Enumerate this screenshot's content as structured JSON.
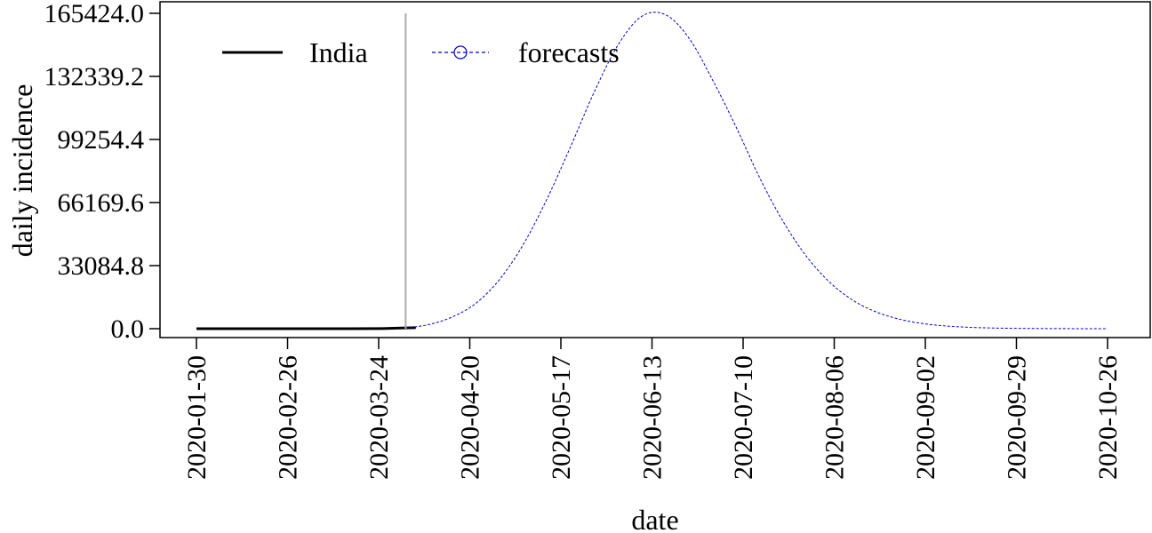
{
  "chart_data": {
    "type": "line",
    "title": "",
    "xlabel": "date",
    "ylabel": "daily incidence",
    "ylim": [
      0,
      165424.0
    ],
    "xlim": [
      "2020-01-30",
      "2020-10-26"
    ],
    "y_ticks": [
      "0.0",
      "33084.8",
      "66169.6",
      "99254.4",
      "132339.2",
      "165424.0"
    ],
    "x_ticks": [
      "2020-01-30",
      "2020-02-26",
      "2020-03-24",
      "2020-04-20",
      "2020-05-17",
      "2020-06-13",
      "2020-07-10",
      "2020-08-06",
      "2020-09-02",
      "2020-09-29",
      "2020-10-26"
    ],
    "legend": {
      "position": "top-left",
      "entries": [
        "India",
        "forecasts"
      ]
    },
    "forecast_start": "2020-04-01",
    "series": [
      {
        "name": "India",
        "style": "solid",
        "color": "#000000",
        "x": [
          "2020-01-30",
          "2020-02-15",
          "2020-03-01",
          "2020-03-15",
          "2020-03-25",
          "2020-04-01",
          "2020-04-04"
        ],
        "y": [
          0,
          0,
          0,
          10,
          80,
          400,
          500
        ]
      },
      {
        "name": "forecasts",
        "style": "dashed",
        "marker": "circle",
        "color": "#0000cc",
        "x": [
          "2020-04-01",
          "2020-04-08",
          "2020-04-15",
          "2020-04-22",
          "2020-04-29",
          "2020-05-06",
          "2020-05-13",
          "2020-05-20",
          "2020-05-27",
          "2020-06-03",
          "2020-06-10",
          "2020-06-17",
          "2020-06-24",
          "2020-07-01",
          "2020-07-08",
          "2020-07-15",
          "2020-07-22",
          "2020-07-29",
          "2020-08-05",
          "2020-08-12",
          "2020-08-19",
          "2020-08-26",
          "2020-09-02",
          "2020-09-09",
          "2020-09-16",
          "2020-09-23",
          "2020-09-30",
          "2020-10-07",
          "2020-10-14",
          "2020-10-21",
          "2020-10-26"
        ],
        "y": [
          400,
          2200,
          6300,
          13600,
          26200,
          44600,
          68500,
          96000,
          124600,
          149000,
          163900,
          164700,
          152300,
          130300,
          105500,
          78800,
          55800,
          37400,
          23800,
          14400,
          8400,
          4700,
          2500,
          1300,
          650,
          320,
          150,
          70,
          30,
          15,
          10
        ]
      }
    ]
  }
}
